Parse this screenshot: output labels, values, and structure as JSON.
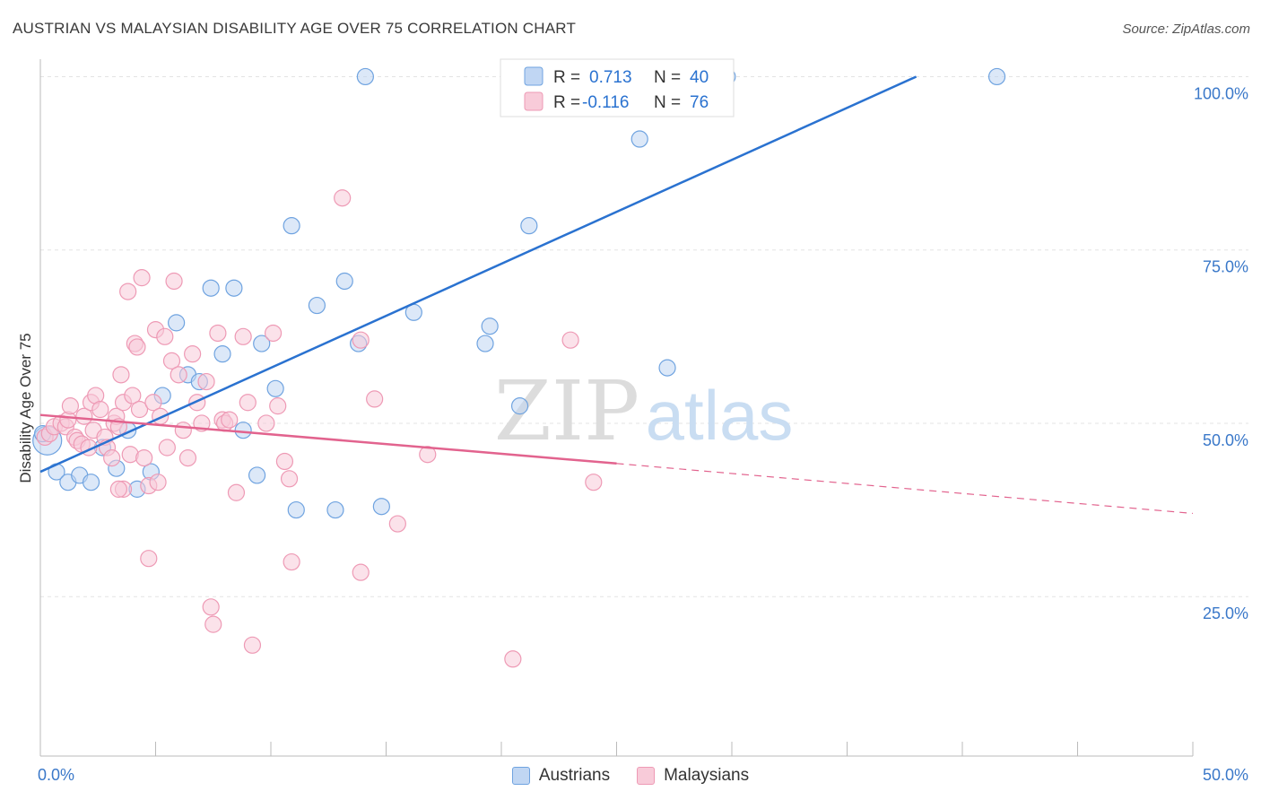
{
  "header": {
    "title": "AUSTRIAN VS MALAYSIAN DISABILITY AGE OVER 75 CORRELATION CHART",
    "source": "Source: ZipAtlas.com"
  },
  "watermark": {
    "zip": "ZIP",
    "atlas": "atlas"
  },
  "chart_data": {
    "type": "scatter",
    "ylabel": "Disability Age Over 75",
    "xlim": [
      0,
      50
    ],
    "ylim": [
      2,
      102
    ],
    "x_tick_labels": [
      "0.0%",
      "50.0%"
    ],
    "y_ticks": [
      25,
      50,
      75,
      100
    ],
    "y_tick_labels": [
      "25.0%",
      "50.0%",
      "75.0%",
      "100.0%"
    ],
    "grid": true,
    "legend_placement": "top-center",
    "series": [
      {
        "name": "Austrians",
        "color": "#6fa3e0",
        "fill": "#c0d6f3",
        "line_color": "#2a72d0",
        "stats": {
          "r_label": "R =",
          "r_value": "0.713",
          "n_label": "N =",
          "n_value": "40"
        },
        "trend": {
          "x1": 0,
          "y1": 43.0,
          "x2": 38,
          "y2": 100.0
        },
        "points": [
          [
            0.3,
            47.5
          ],
          [
            0.7,
            43.0
          ],
          [
            1.2,
            41.5
          ],
          [
            1.7,
            42.5
          ],
          [
            2.2,
            41.5
          ],
          [
            2.7,
            46.5
          ],
          [
            3.3,
            43.5
          ],
          [
            3.8,
            49.0
          ],
          [
            4.2,
            40.5
          ],
          [
            4.8,
            43.0
          ],
          [
            5.3,
            54.0
          ],
          [
            5.9,
            64.5
          ],
          [
            6.4,
            57.0
          ],
          [
            6.9,
            56.0
          ],
          [
            7.4,
            69.5
          ],
          [
            7.9,
            60.0
          ],
          [
            8.4,
            69.5
          ],
          [
            8.8,
            49.0
          ],
          [
            9.4,
            42.5
          ],
          [
            9.6,
            61.5
          ],
          [
            10.2,
            55.0
          ],
          [
            10.9,
            78.5
          ],
          [
            11.1,
            37.5
          ],
          [
            12.0,
            67.0
          ],
          [
            12.8,
            37.5
          ],
          [
            13.2,
            70.5
          ],
          [
            13.8,
            61.5
          ],
          [
            14.1,
            100.0
          ],
          [
            14.8,
            38.0
          ],
          [
            16.2,
            66.0
          ],
          [
            19.3,
            61.5
          ],
          [
            19.5,
            64.0
          ],
          [
            20.8,
            52.5
          ],
          [
            21.2,
            78.5
          ],
          [
            23.5,
            100.0
          ],
          [
            26.0,
            91.0
          ],
          [
            27.2,
            58.0
          ],
          [
            29.8,
            100.0
          ],
          [
            41.5,
            100.0
          ],
          [
            0.1,
            48.5
          ]
        ]
      },
      {
        "name": "Malaysians",
        "color": "#ee9ab5",
        "fill": "#f8cbd9",
        "line_color": "#e2638e",
        "stats": {
          "r_label": "R =",
          "r_value": "-0.116",
          "n_label": "N =",
          "n_value": "76"
        },
        "trend": {
          "x1": 0,
          "y1": 51.2,
          "x2": 25,
          "y2": 44.2,
          "dash_x2": 50,
          "dash_y2": 37.0
        },
        "points": [
          [
            0.2,
            48.0
          ],
          [
            0.4,
            48.5
          ],
          [
            0.6,
            49.5
          ],
          [
            0.9,
            50.0
          ],
          [
            1.1,
            49.5
          ],
          [
            1.2,
            50.5
          ],
          [
            1.3,
            52.5
          ],
          [
            1.5,
            48.0
          ],
          [
            1.6,
            47.5
          ],
          [
            1.8,
            47.0
          ],
          [
            1.9,
            51.0
          ],
          [
            2.1,
            46.5
          ],
          [
            2.2,
            53.0
          ],
          [
            2.3,
            49.0
          ],
          [
            2.4,
            54.0
          ],
          [
            2.6,
            52.0
          ],
          [
            2.8,
            48.0
          ],
          [
            2.9,
            46.5
          ],
          [
            3.1,
            45.0
          ],
          [
            3.2,
            50.0
          ],
          [
            3.3,
            51.0
          ],
          [
            3.4,
            49.5
          ],
          [
            3.6,
            53.0
          ],
          [
            3.6,
            40.5
          ],
          [
            3.4,
            40.5
          ],
          [
            3.5,
            57.0
          ],
          [
            3.8,
            69.0
          ],
          [
            3.9,
            45.5
          ],
          [
            4.0,
            54.0
          ],
          [
            4.1,
            61.5
          ],
          [
            4.2,
            61.0
          ],
          [
            4.3,
            52.0
          ],
          [
            4.4,
            71.0
          ],
          [
            4.5,
            45.0
          ],
          [
            4.7,
            41.0
          ],
          [
            4.7,
            30.5
          ],
          [
            4.9,
            53.0
          ],
          [
            5.0,
            63.5
          ],
          [
            5.1,
            41.5
          ],
          [
            5.2,
            51.0
          ],
          [
            5.4,
            62.5
          ],
          [
            5.5,
            46.5
          ],
          [
            5.7,
            59.0
          ],
          [
            5.8,
            70.5
          ],
          [
            6.0,
            57.0
          ],
          [
            6.2,
            49.0
          ],
          [
            6.4,
            45.0
          ],
          [
            6.6,
            60.0
          ],
          [
            6.8,
            53.0
          ],
          [
            7.0,
            50.0
          ],
          [
            7.2,
            56.0
          ],
          [
            7.4,
            23.5
          ],
          [
            7.5,
            21.0
          ],
          [
            7.7,
            63.0
          ],
          [
            7.9,
            50.5
          ],
          [
            8.0,
            50.0
          ],
          [
            8.2,
            50.5
          ],
          [
            8.5,
            40.0
          ],
          [
            8.8,
            62.5
          ],
          [
            9.0,
            53.0
          ],
          [
            9.2,
            18.0
          ],
          [
            9.8,
            50.0
          ],
          [
            10.1,
            63.0
          ],
          [
            10.3,
            52.5
          ],
          [
            10.6,
            44.5
          ],
          [
            10.8,
            42.0
          ],
          [
            10.9,
            30.0
          ],
          [
            13.1,
            82.5
          ],
          [
            13.9,
            28.5
          ],
          [
            13.9,
            62.0
          ],
          [
            14.5,
            53.5
          ],
          [
            15.5,
            35.5
          ],
          [
            20.5,
            16.0
          ],
          [
            23.0,
            62.0
          ],
          [
            24.0,
            41.5
          ],
          [
            16.8,
            45.5
          ]
        ]
      }
    ]
  }
}
